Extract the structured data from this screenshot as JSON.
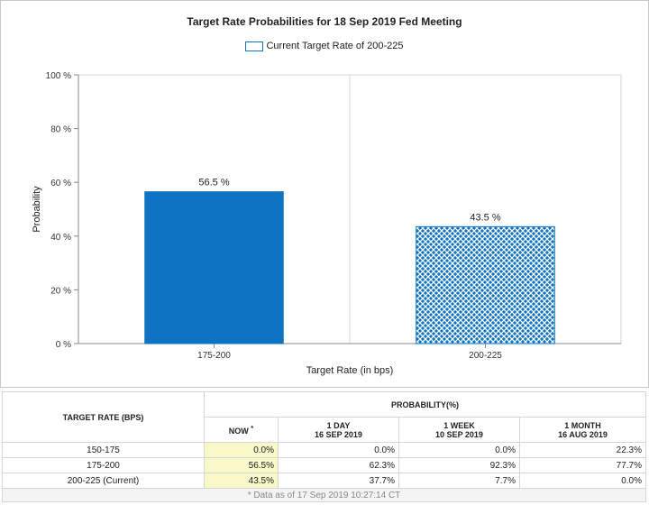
{
  "chart_data": {
    "type": "bar",
    "title": "Target Rate Probabilities for 18 Sep 2019 Fed Meeting",
    "legend": "Current Target Rate of 200-225",
    "categories": [
      "175-200",
      "200-225"
    ],
    "values": [
      56.5,
      43.5
    ],
    "data_labels": [
      "56.5 %",
      "43.5 %"
    ],
    "patterns": [
      "solid",
      "crosshatch"
    ],
    "xlabel": "Target Rate (in bps)",
    "ylabel": "Probability",
    "ylim": [
      0,
      100
    ],
    "yticks": [
      0,
      20,
      40,
      60,
      80,
      100
    ],
    "ytick_labels": [
      "0 %",
      "20 %",
      "40 %",
      "60 %",
      "80 %",
      "100 %"
    ],
    "grid": "vertical",
    "bar_color": "#0d73c2"
  },
  "table": {
    "col_rate": "TARGET RATE (BPS)",
    "col_prob": "PROBABILITY(%)",
    "now_label": "NOW",
    "now_mark": "*",
    "periods": [
      {
        "line1": "1 DAY",
        "line2": "16 SEP 2019"
      },
      {
        "line1": "1 WEEK",
        "line2": "10 SEP 2019"
      },
      {
        "line1": "1 MONTH",
        "line2": "16 AUG 2019"
      }
    ],
    "rows": [
      {
        "rate": "150-175",
        "now": "0.0%",
        "d1": "0.0%",
        "w1": "0.0%",
        "m1": "22.3%"
      },
      {
        "rate": "175-200",
        "now": "56.5%",
        "d1": "62.3%",
        "w1": "92.3%",
        "m1": "77.7%"
      },
      {
        "rate": "200-225 (Current)",
        "now": "43.5%",
        "d1": "37.7%",
        "w1": "7.7%",
        "m1": "0.0%"
      }
    ],
    "footnote": "* Data as of 17 Sep 2019 10:27:14 CT"
  }
}
